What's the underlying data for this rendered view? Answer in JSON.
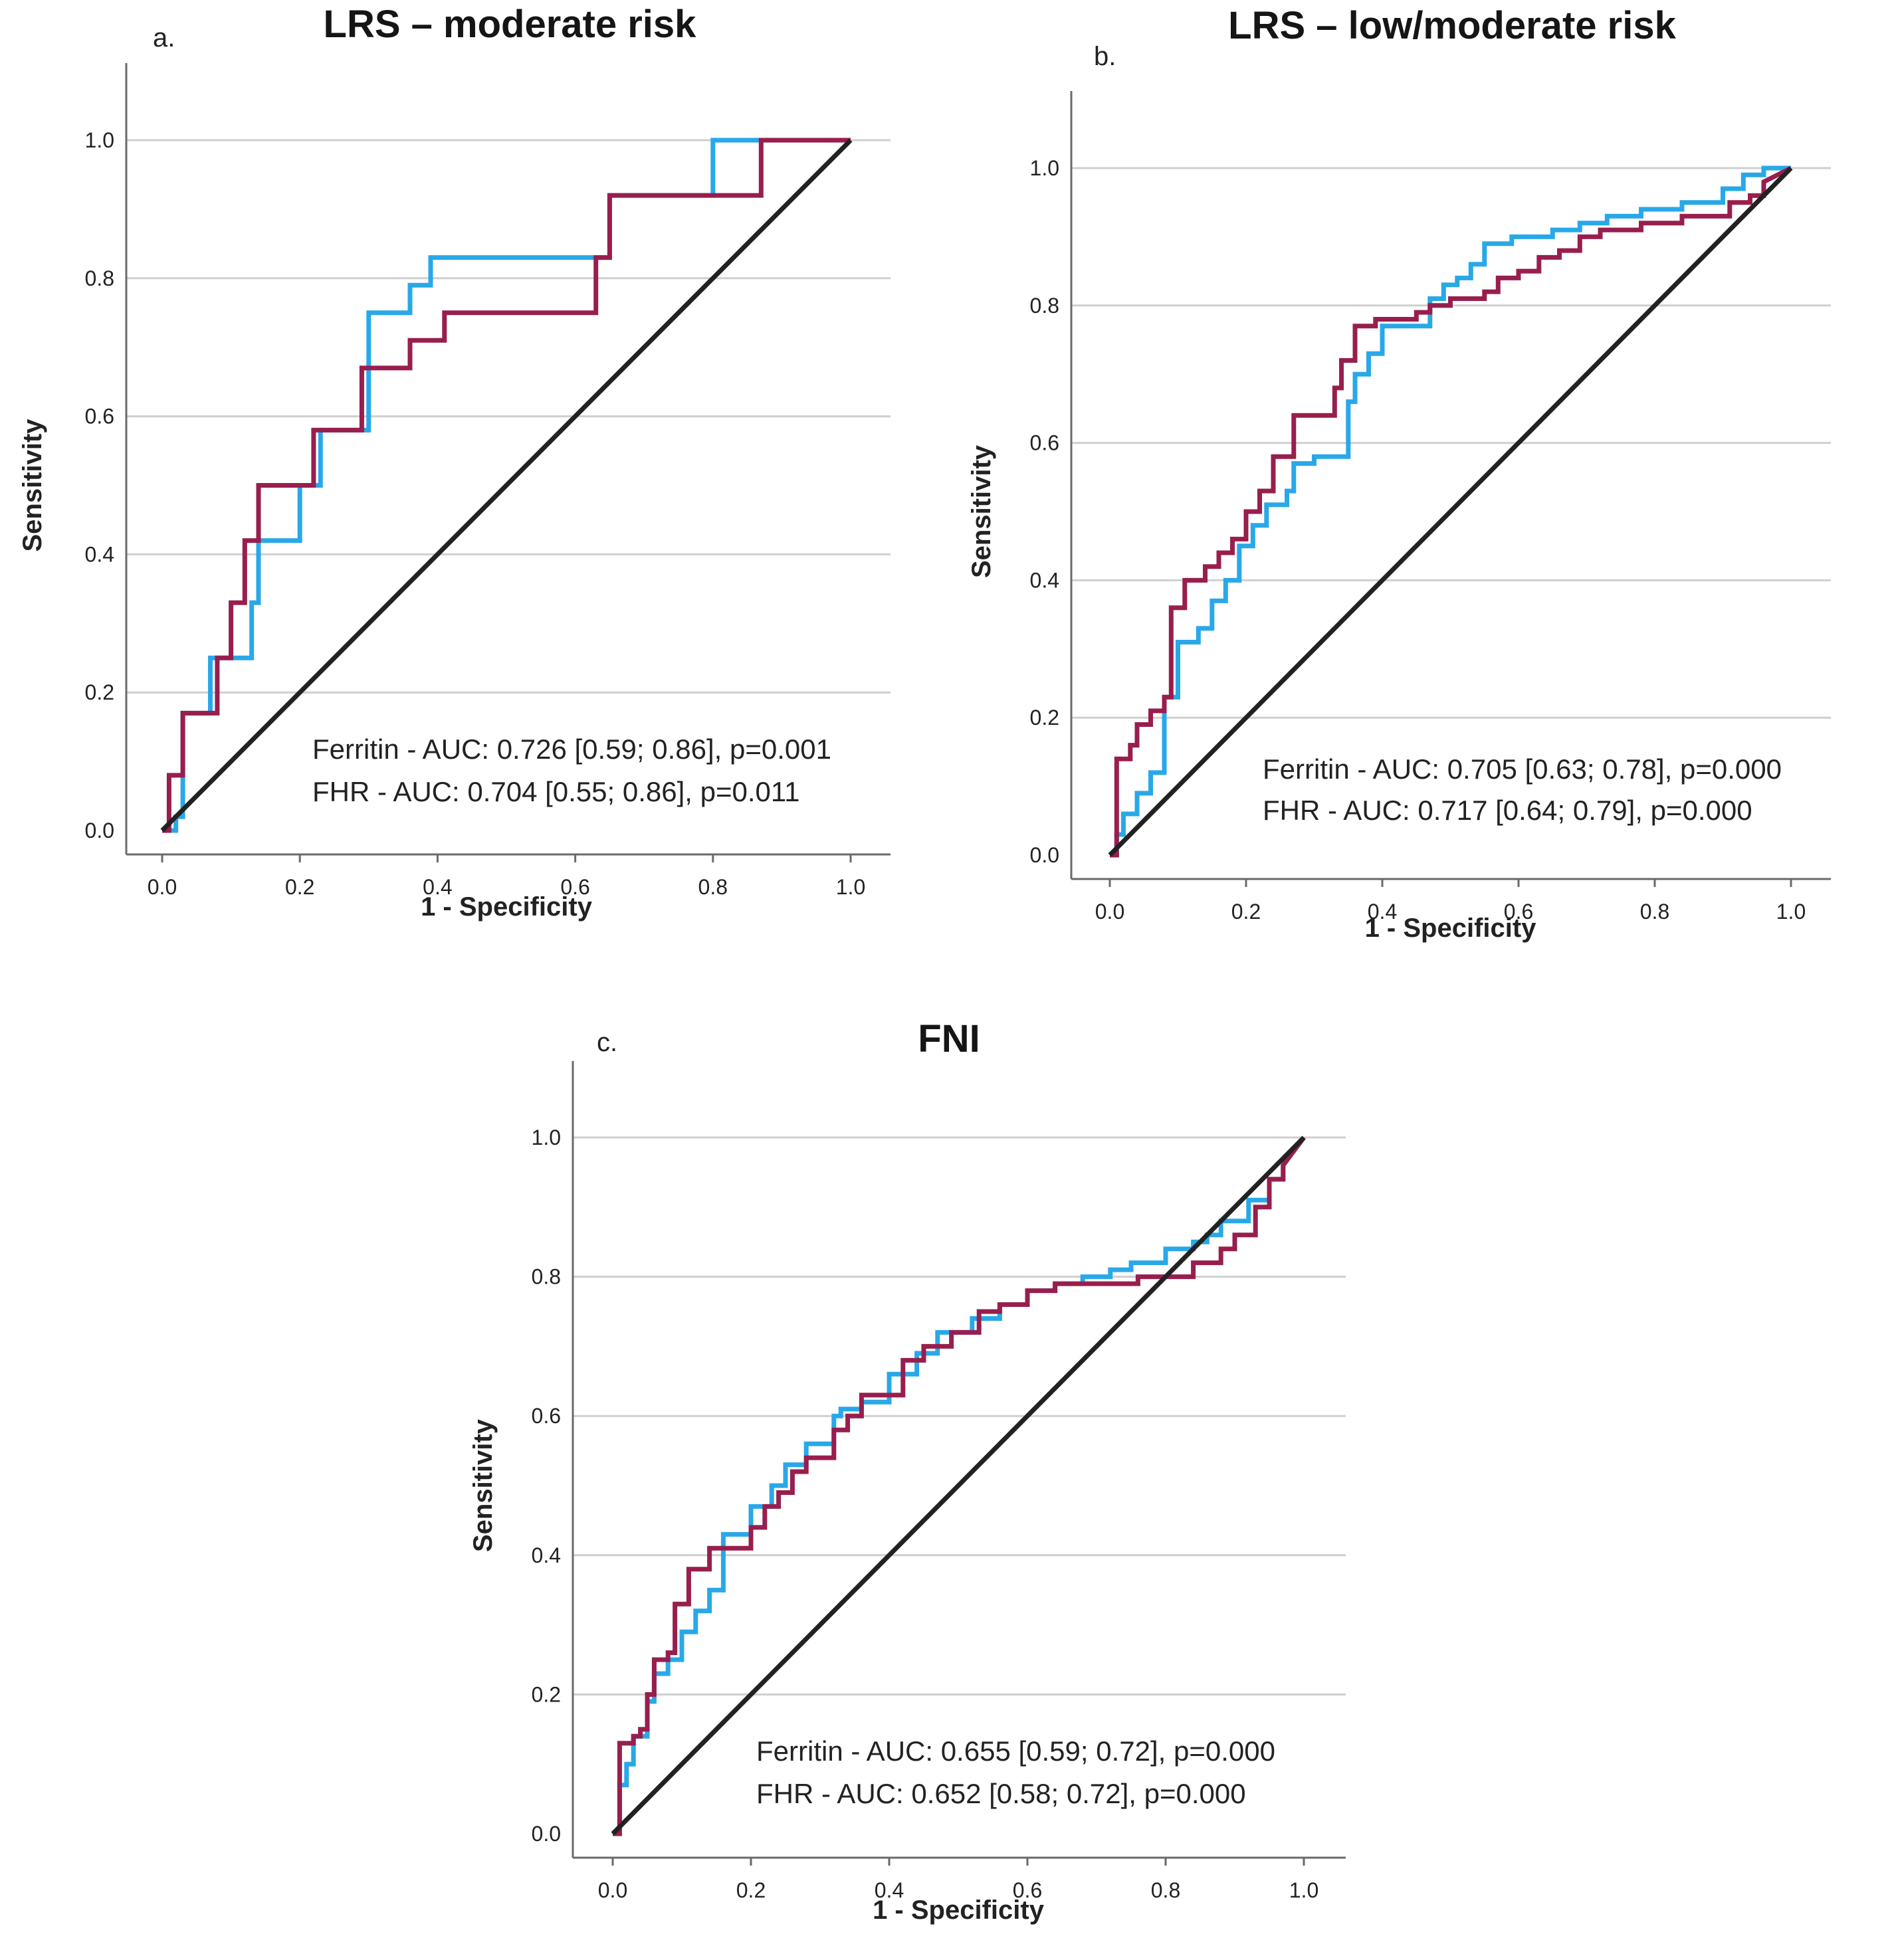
{
  "colors": {
    "ferritin": "#29a8e8",
    "fhr": "#981e4e",
    "diagonal": "#222222",
    "grid": "#cfcfcf",
    "axis": "#6a6a6a",
    "text": "#222222",
    "title": "#151515"
  },
  "chart_data": [
    {
      "type": "line",
      "panel_label": "a.",
      "title": "LRS – moderate risk",
      "xlabel": "1 - Specificity",
      "ylabel": "Sensitivity",
      "xlim": [
        0,
        1
      ],
      "ylim": [
        0,
        1
      ],
      "x_ticks": [
        "0.0",
        "0.2",
        "0.4",
        "0.6",
        "0.8",
        "1.0"
      ],
      "y_ticks": [
        "0.0",
        "0.2",
        "0.4",
        "0.6",
        "0.8",
        "1.0"
      ],
      "grid": true,
      "annotations": [
        "Ferritin - AUC: 0.726 [0.59; 0.86], p=0.001",
        "FHR - AUC: 0.704 [0.55; 0.86], p=0.011"
      ],
      "series": [
        {
          "name": "Ferritin",
          "key": "ferritin",
          "x": [
            0,
            0.02,
            0.02,
            0.03,
            0.03,
            0.07,
            0.07,
            0.13,
            0.13,
            0.14,
            0.14,
            0.2,
            0.2,
            0.23,
            0.23,
            0.3,
            0.3,
            0.36,
            0.36,
            0.39,
            0.39,
            0.65,
            0.65,
            0.8,
            0.8,
            0.87,
            0.87,
            1.0
          ],
          "y": [
            0,
            0,
            0.02,
            0.02,
            0.17,
            0.17,
            0.25,
            0.25,
            0.33,
            0.33,
            0.42,
            0.42,
            0.5,
            0.5,
            0.58,
            0.58,
            0.75,
            0.75,
            0.79,
            0.79,
            0.83,
            0.83,
            0.92,
            0.92,
            1.0,
            1.0,
            1.0,
            1.0
          ]
        },
        {
          "name": "FHR",
          "key": "fhr",
          "x": [
            0,
            0.01,
            0.01,
            0.03,
            0.03,
            0.08,
            0.08,
            0.1,
            0.1,
            0.12,
            0.12,
            0.14,
            0.14,
            0.22,
            0.22,
            0.29,
            0.29,
            0.36,
            0.36,
            0.41,
            0.41,
            0.63,
            0.63,
            0.65,
            0.65,
            0.87,
            0.87,
            1.0
          ],
          "y": [
            0,
            0,
            0.08,
            0.08,
            0.17,
            0.17,
            0.25,
            0.25,
            0.33,
            0.33,
            0.42,
            0.42,
            0.5,
            0.5,
            0.58,
            0.58,
            0.67,
            0.67,
            0.71,
            0.71,
            0.75,
            0.75,
            0.83,
            0.83,
            0.92,
            0.92,
            1.0,
            1.0
          ]
        },
        {
          "name": "Reference",
          "key": "diagonal",
          "x": [
            0,
            1
          ],
          "y": [
            0,
            1
          ]
        }
      ]
    },
    {
      "type": "line",
      "panel_label": "b.",
      "title": "LRS – low/moderate risk",
      "xlabel": "1 - Specificity",
      "ylabel": "Sensitivity",
      "xlim": [
        0,
        1
      ],
      "ylim": [
        0,
        1
      ],
      "x_ticks": [
        "0.0",
        "0.2",
        "0.4",
        "0.6",
        "0.8",
        "1.0"
      ],
      "y_ticks": [
        "0.0",
        "0.2",
        "0.4",
        "0.6",
        "0.8",
        "1.0"
      ],
      "grid": true,
      "annotations": [
        "Ferritin - AUC: 0.705 [0.63; 0.78], p=0.000",
        "FHR - AUC: 0.717 [0.64; 0.79], p=0.000"
      ],
      "series": [
        {
          "name": "Ferritin",
          "key": "ferritin",
          "x": [
            0,
            0.01,
            0.01,
            0.02,
            0.02,
            0.04,
            0.04,
            0.06,
            0.06,
            0.08,
            0.08,
            0.1,
            0.1,
            0.13,
            0.13,
            0.15,
            0.15,
            0.17,
            0.17,
            0.19,
            0.19,
            0.21,
            0.21,
            0.23,
            0.23,
            0.26,
            0.26,
            0.27,
            0.27,
            0.3,
            0.3,
            0.35,
            0.35,
            0.36,
            0.36,
            0.38,
            0.38,
            0.4,
            0.4,
            0.47,
            0.47,
            0.49,
            0.49,
            0.51,
            0.51,
            0.53,
            0.53,
            0.55,
            0.55,
            0.59,
            0.59,
            0.65,
            0.65,
            0.69,
            0.69,
            0.73,
            0.73,
            0.78,
            0.78,
            0.84,
            0.84,
            0.9,
            0.9,
            0.93,
            0.93,
            0.96,
            0.96,
            1.0
          ],
          "y": [
            0,
            0,
            0.03,
            0.03,
            0.06,
            0.06,
            0.09,
            0.09,
            0.12,
            0.12,
            0.23,
            0.23,
            0.31,
            0.31,
            0.33,
            0.33,
            0.37,
            0.37,
            0.4,
            0.4,
            0.45,
            0.45,
            0.48,
            0.48,
            0.51,
            0.51,
            0.53,
            0.53,
            0.57,
            0.57,
            0.58,
            0.58,
            0.66,
            0.66,
            0.7,
            0.7,
            0.73,
            0.73,
            0.77,
            0.77,
            0.81,
            0.81,
            0.83,
            0.83,
            0.84,
            0.84,
            0.86,
            0.86,
            0.89,
            0.89,
            0.9,
            0.9,
            0.91,
            0.91,
            0.92,
            0.92,
            0.93,
            0.93,
            0.94,
            0.94,
            0.95,
            0.95,
            0.97,
            0.97,
            0.99,
            0.99,
            1.0,
            1.0
          ]
        },
        {
          "name": "FHR",
          "key": "fhr",
          "x": [
            0,
            0.01,
            0.01,
            0.03,
            0.03,
            0.04,
            0.04,
            0.06,
            0.06,
            0.08,
            0.08,
            0.09,
            0.09,
            0.11,
            0.11,
            0.14,
            0.14,
            0.16,
            0.16,
            0.18,
            0.18,
            0.2,
            0.2,
            0.22,
            0.22,
            0.24,
            0.24,
            0.27,
            0.27,
            0.33,
            0.33,
            0.34,
            0.34,
            0.36,
            0.36,
            0.39,
            0.39,
            0.45,
            0.45,
            0.47,
            0.47,
            0.5,
            0.5,
            0.55,
            0.55,
            0.57,
            0.57,
            0.6,
            0.6,
            0.63,
            0.63,
            0.66,
            0.66,
            0.69,
            0.69,
            0.72,
            0.72,
            0.78,
            0.78,
            0.84,
            0.84,
            0.91,
            0.91,
            0.94,
            0.94,
            0.96,
            0.96,
            1.0
          ],
          "y": [
            0,
            0,
            0.14,
            0.14,
            0.16,
            0.16,
            0.19,
            0.19,
            0.21,
            0.21,
            0.23,
            0.23,
            0.36,
            0.36,
            0.4,
            0.4,
            0.42,
            0.42,
            0.44,
            0.44,
            0.46,
            0.46,
            0.5,
            0.5,
            0.53,
            0.53,
            0.58,
            0.58,
            0.64,
            0.64,
            0.68,
            0.68,
            0.72,
            0.72,
            0.77,
            0.77,
            0.78,
            0.78,
            0.79,
            0.79,
            0.8,
            0.8,
            0.81,
            0.81,
            0.82,
            0.82,
            0.84,
            0.84,
            0.85,
            0.85,
            0.87,
            0.87,
            0.88,
            0.88,
            0.9,
            0.9,
            0.91,
            0.91,
            0.92,
            0.92,
            0.93,
            0.93,
            0.95,
            0.95,
            0.96,
            0.96,
            0.98,
            1.0
          ]
        },
        {
          "name": "Reference",
          "key": "diagonal",
          "x": [
            0,
            1
          ],
          "y": [
            0,
            1
          ]
        }
      ]
    },
    {
      "type": "line",
      "panel_label": "c.",
      "title": "FNI",
      "xlabel": "1 - Specificity",
      "ylabel": "Sensitivity",
      "xlim": [
        0,
        1
      ],
      "ylim": [
        0,
        1
      ],
      "x_ticks": [
        "0.0",
        "0.2",
        "0.4",
        "0.6",
        "0.8",
        "1.0"
      ],
      "y_ticks": [
        "0.0",
        "0.2",
        "0.4",
        "0.6",
        "0.8",
        "1.0"
      ],
      "grid": true,
      "annotations": [
        "Ferritin - AUC: 0.655 [0.59; 0.72], p=0.000",
        "FHR - AUC: 0.652 [0.58; 0.72], p=0.000"
      ],
      "series": [
        {
          "name": "Ferritin",
          "key": "ferritin",
          "x": [
            0,
            0.01,
            0.01,
            0.02,
            0.02,
            0.03,
            0.03,
            0.05,
            0.05,
            0.06,
            0.06,
            0.08,
            0.08,
            0.1,
            0.1,
            0.12,
            0.12,
            0.14,
            0.14,
            0.16,
            0.16,
            0.2,
            0.2,
            0.23,
            0.23,
            0.25,
            0.25,
            0.28,
            0.28,
            0.32,
            0.32,
            0.33,
            0.33,
            0.36,
            0.36,
            0.4,
            0.4,
            0.44,
            0.44,
            0.47,
            0.47,
            0.52,
            0.52,
            0.56,
            0.56,
            0.6,
            0.6,
            0.64,
            0.64,
            0.68,
            0.68,
            0.72,
            0.72,
            0.75,
            0.75,
            0.8,
            0.8,
            0.84,
            0.84,
            0.86,
            0.86,
            0.88,
            0.88,
            0.92,
            0.92,
            0.95,
            0.95,
            0.97,
            0.97,
            1.0
          ],
          "y": [
            0,
            0,
            0.07,
            0.07,
            0.1,
            0.1,
            0.14,
            0.14,
            0.19,
            0.19,
            0.23,
            0.23,
            0.25,
            0.25,
            0.29,
            0.29,
            0.32,
            0.32,
            0.35,
            0.35,
            0.43,
            0.43,
            0.47,
            0.47,
            0.5,
            0.5,
            0.53,
            0.53,
            0.56,
            0.56,
            0.6,
            0.6,
            0.61,
            0.61,
            0.62,
            0.62,
            0.66,
            0.66,
            0.69,
            0.69,
            0.72,
            0.72,
            0.74,
            0.74,
            0.76,
            0.76,
            0.78,
            0.78,
            0.79,
            0.79,
            0.8,
            0.8,
            0.81,
            0.81,
            0.82,
            0.82,
            0.84,
            0.84,
            0.85,
            0.85,
            0.86,
            0.86,
            0.88,
            0.88,
            0.91,
            0.91,
            0.94,
            0.94,
            0.96,
            1.0
          ]
        },
        {
          "name": "FHR",
          "key": "fhr",
          "x": [
            0,
            0.01,
            0.01,
            0.03,
            0.03,
            0.04,
            0.04,
            0.05,
            0.05,
            0.06,
            0.06,
            0.08,
            0.08,
            0.09,
            0.09,
            0.11,
            0.11,
            0.14,
            0.14,
            0.2,
            0.2,
            0.22,
            0.22,
            0.24,
            0.24,
            0.26,
            0.26,
            0.28,
            0.28,
            0.32,
            0.32,
            0.34,
            0.34,
            0.36,
            0.36,
            0.42,
            0.42,
            0.45,
            0.45,
            0.49,
            0.49,
            0.53,
            0.53,
            0.56,
            0.56,
            0.6,
            0.6,
            0.64,
            0.64,
            0.7,
            0.7,
            0.76,
            0.76,
            0.84,
            0.84,
            0.88,
            0.88,
            0.9,
            0.9,
            0.93,
            0.93,
            0.95,
            0.95,
            0.97,
            0.97,
            1.0
          ],
          "y": [
            0,
            0,
            0.13,
            0.13,
            0.14,
            0.14,
            0.15,
            0.15,
            0.2,
            0.2,
            0.25,
            0.25,
            0.26,
            0.26,
            0.33,
            0.33,
            0.38,
            0.38,
            0.41,
            0.41,
            0.44,
            0.44,
            0.47,
            0.47,
            0.49,
            0.49,
            0.52,
            0.52,
            0.54,
            0.54,
            0.58,
            0.58,
            0.6,
            0.6,
            0.63,
            0.63,
            0.68,
            0.68,
            0.7,
            0.7,
            0.72,
            0.72,
            0.75,
            0.75,
            0.76,
            0.76,
            0.78,
            0.78,
            0.79,
            0.79,
            0.79,
            0.79,
            0.8,
            0.8,
            0.82,
            0.82,
            0.84,
            0.84,
            0.86,
            0.86,
            0.9,
            0.9,
            0.94,
            0.94,
            0.96,
            1.0
          ]
        },
        {
          "name": "Reference",
          "key": "diagonal",
          "x": [
            0,
            1
          ],
          "y": [
            0,
            1
          ]
        }
      ]
    }
  ]
}
